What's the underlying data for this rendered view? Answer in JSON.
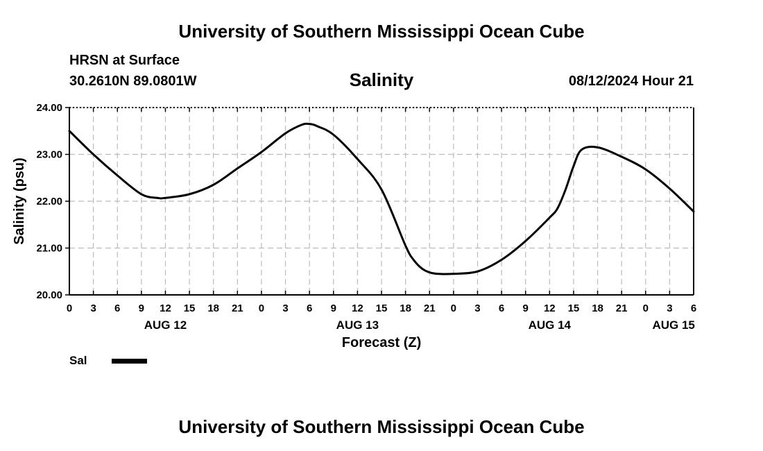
{
  "header": {
    "main_title": "University of Southern Mississippi Ocean Cube",
    "station": "HRSN at Surface",
    "coords": "30.2610N  89.0801W",
    "datetime": "08/12/2024 Hour 21"
  },
  "footer": {
    "title": "University of Southern Mississippi Ocean Cube"
  },
  "colors": {
    "line": "#000000",
    "grid": "#bbbbbb",
    "axis": "#000000"
  },
  "chart_data": {
    "type": "line",
    "title": "Salinity",
    "xlabel": "Forecast (Z)",
    "ylabel": "Salinity (psu)",
    "xlim": [
      0,
      78
    ],
    "ylim": [
      20,
      24
    ],
    "x_tick_values": [
      0,
      3,
      6,
      9,
      12,
      15,
      18,
      21,
      24,
      27,
      30,
      33,
      36,
      39,
      42,
      45,
      48,
      51,
      54,
      57,
      60,
      63,
      66,
      69,
      72,
      75,
      78
    ],
    "x_tick_labels": [
      "0",
      "3",
      "6",
      "9",
      "12",
      "15",
      "18",
      "21",
      "0",
      "3",
      "6",
      "9",
      "12",
      "15",
      "18",
      "21",
      "0",
      "3",
      "6",
      "9",
      "12",
      "15",
      "18",
      "21",
      "0",
      "3",
      "6"
    ],
    "y_tick_values": [
      20,
      21,
      22,
      23,
      24
    ],
    "y_tick_labels": [
      "20.00",
      "21.00",
      "22.00",
      "23.00",
      "24.00"
    ],
    "day_labels": [
      {
        "label": "AUG 12",
        "x": 12
      },
      {
        "label": "AUG 13",
        "x": 36
      },
      {
        "label": "AUG 14",
        "x": 60
      },
      {
        "label": "AUG 15",
        "x": 75.5
      }
    ],
    "grid": true,
    "legend": {
      "position": "bottom-left",
      "entries": [
        "Sal"
      ]
    },
    "series": [
      {
        "name": "Sal",
        "x": [
          0,
          3,
          6,
          9,
          11,
          12,
          15,
          18,
          21,
          24,
          27,
          29,
          30,
          31,
          33,
          36,
          39,
          42,
          43,
          44,
          45,
          46,
          48,
          51,
          54,
          57,
          60,
          61,
          62,
          63,
          64,
          66,
          69,
          72,
          75,
          78
        ],
        "y": [
          23.5,
          23.0,
          22.55,
          22.15,
          22.07,
          22.07,
          22.15,
          22.35,
          22.7,
          23.05,
          23.45,
          23.63,
          23.65,
          23.6,
          23.42,
          22.9,
          22.25,
          21.05,
          20.75,
          20.57,
          20.48,
          20.45,
          20.45,
          20.5,
          20.75,
          21.15,
          21.65,
          21.85,
          22.25,
          22.75,
          23.1,
          23.15,
          22.95,
          22.68,
          22.27,
          21.78
        ]
      }
    ]
  }
}
